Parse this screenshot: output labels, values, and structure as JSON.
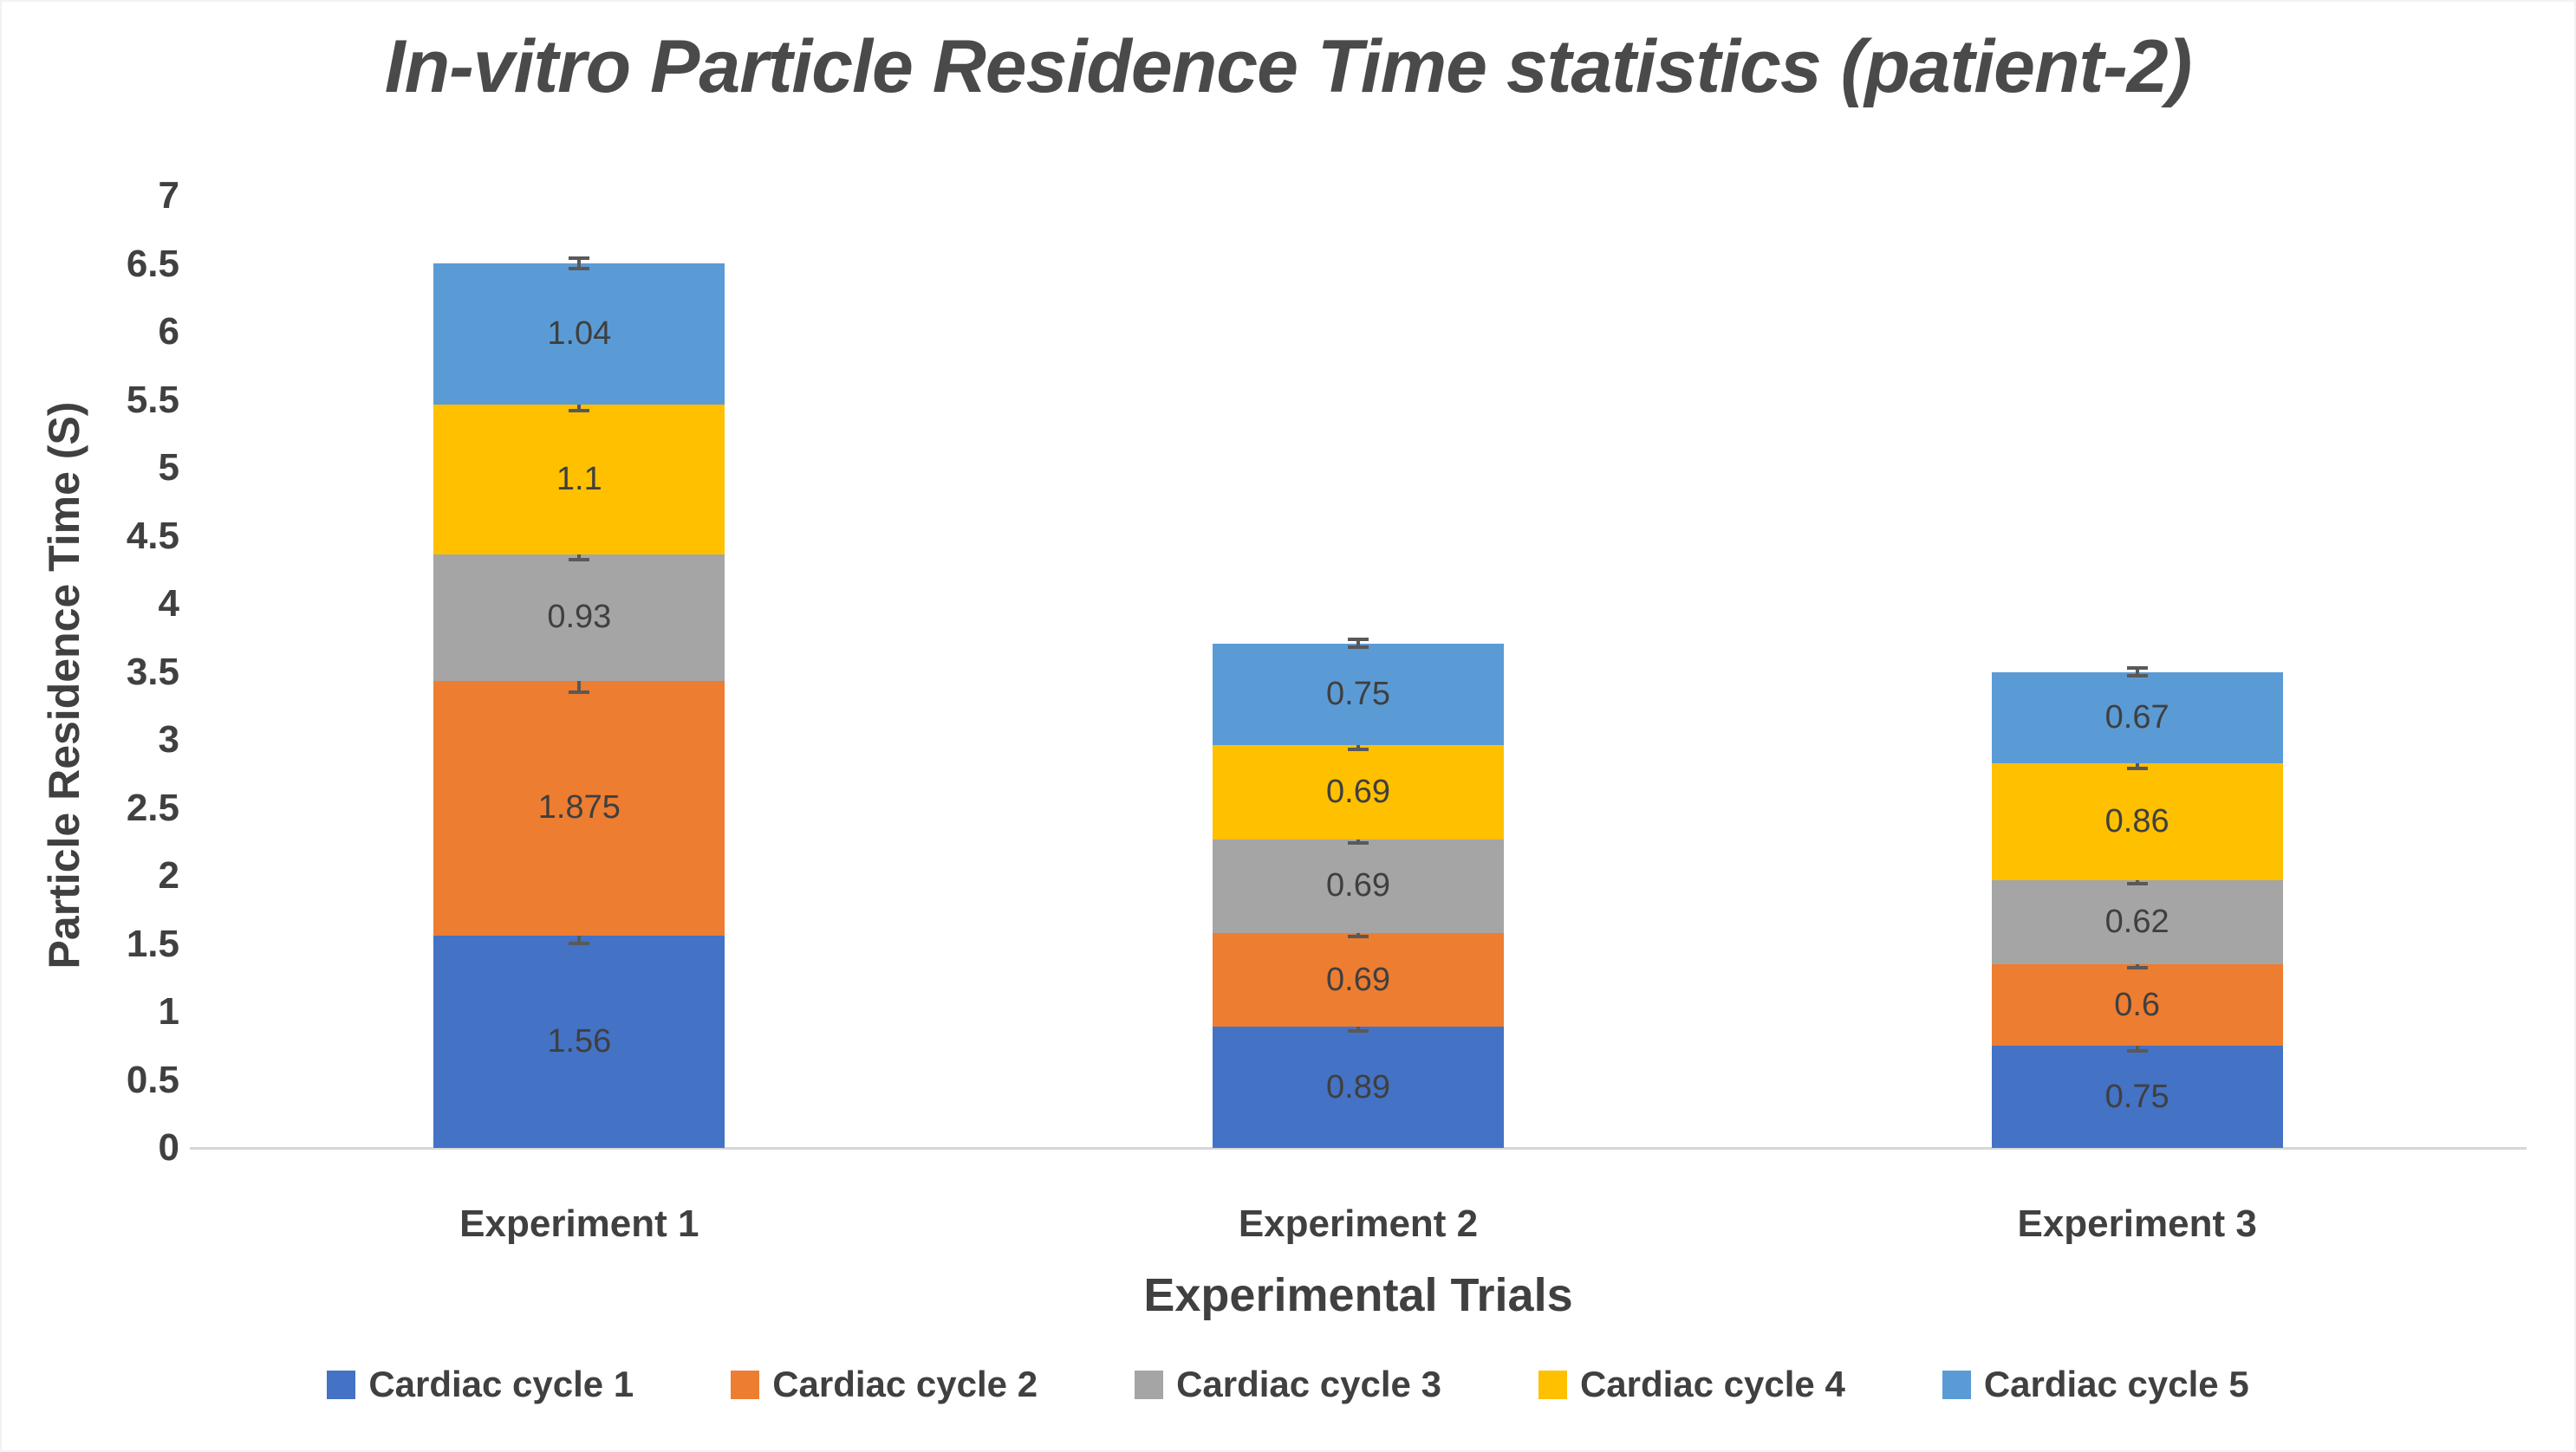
{
  "title": "In-vitro Particle Residence Time statistics (patient-2)",
  "axes": {
    "y_title": "Particle Residence Time (S)",
    "x_title": "Experimental Trials",
    "y_tick_labels": [
      "0",
      "0.5",
      "1",
      "1.5",
      "2",
      "2.5",
      "3",
      "3.5",
      "4",
      "4.5",
      "5",
      "5.5",
      "6",
      "6.5",
      "7"
    ]
  },
  "chart_data": {
    "type": "bar",
    "stacked": true,
    "title": "In-vitro Particle Residence Time statistics (patient-2)",
    "xlabel": "Experimental Trials",
    "ylabel": "Particle Residence Time (S)",
    "ylim": [
      0,
      7
    ],
    "ytick_step": 0.5,
    "grid": false,
    "legend_position": "bottom",
    "error_bars": true,
    "categories": [
      "Experiment 1",
      "Experiment 2",
      "Experiment 3"
    ],
    "series": [
      {
        "name": "Cardiac cycle 1",
        "color": "#4472C4",
        "values": [
          1.56,
          0.89,
          0.75
        ],
        "labels": [
          "1.56",
          "0.89",
          "0.75"
        ],
        "errors": [
          0.07,
          0.04,
          0.05
        ]
      },
      {
        "name": "Cardiac cycle 2",
        "color": "#ED7D31",
        "values": [
          1.875,
          0.69,
          0.6
        ],
        "labels": [
          "1.875",
          "0.69",
          "0.6"
        ],
        "errors": [
          0.1,
          0.04,
          0.04
        ]
      },
      {
        "name": "Cardiac cycle 3",
        "color": "#A5A5A5",
        "values": [
          0.93,
          0.69,
          0.62
        ],
        "labels": [
          "0.93",
          "0.69",
          "0.62"
        ],
        "errors": [
          0.05,
          0.04,
          0.04
        ]
      },
      {
        "name": "Cardiac cycle 4",
        "color": "#FFC000",
        "values": [
          1.1,
          0.69,
          0.86
        ],
        "labels": [
          "1.1",
          "0.69",
          "0.86"
        ],
        "errors": [
          0.06,
          0.04,
          0.05
        ]
      },
      {
        "name": "Cardiac cycle 5",
        "color": "#5B9BD5",
        "values": [
          1.04,
          0.75,
          0.67
        ],
        "labels": [
          "1.04",
          "0.75",
          "0.67"
        ],
        "errors": [
          0.05,
          0.04,
          0.04
        ]
      }
    ]
  },
  "colors": {
    "text": "#404040",
    "title_text": "#4a4a4a",
    "error_bar": "#595959",
    "baseline": "#d6d6d6",
    "background": "#ffffff"
  }
}
